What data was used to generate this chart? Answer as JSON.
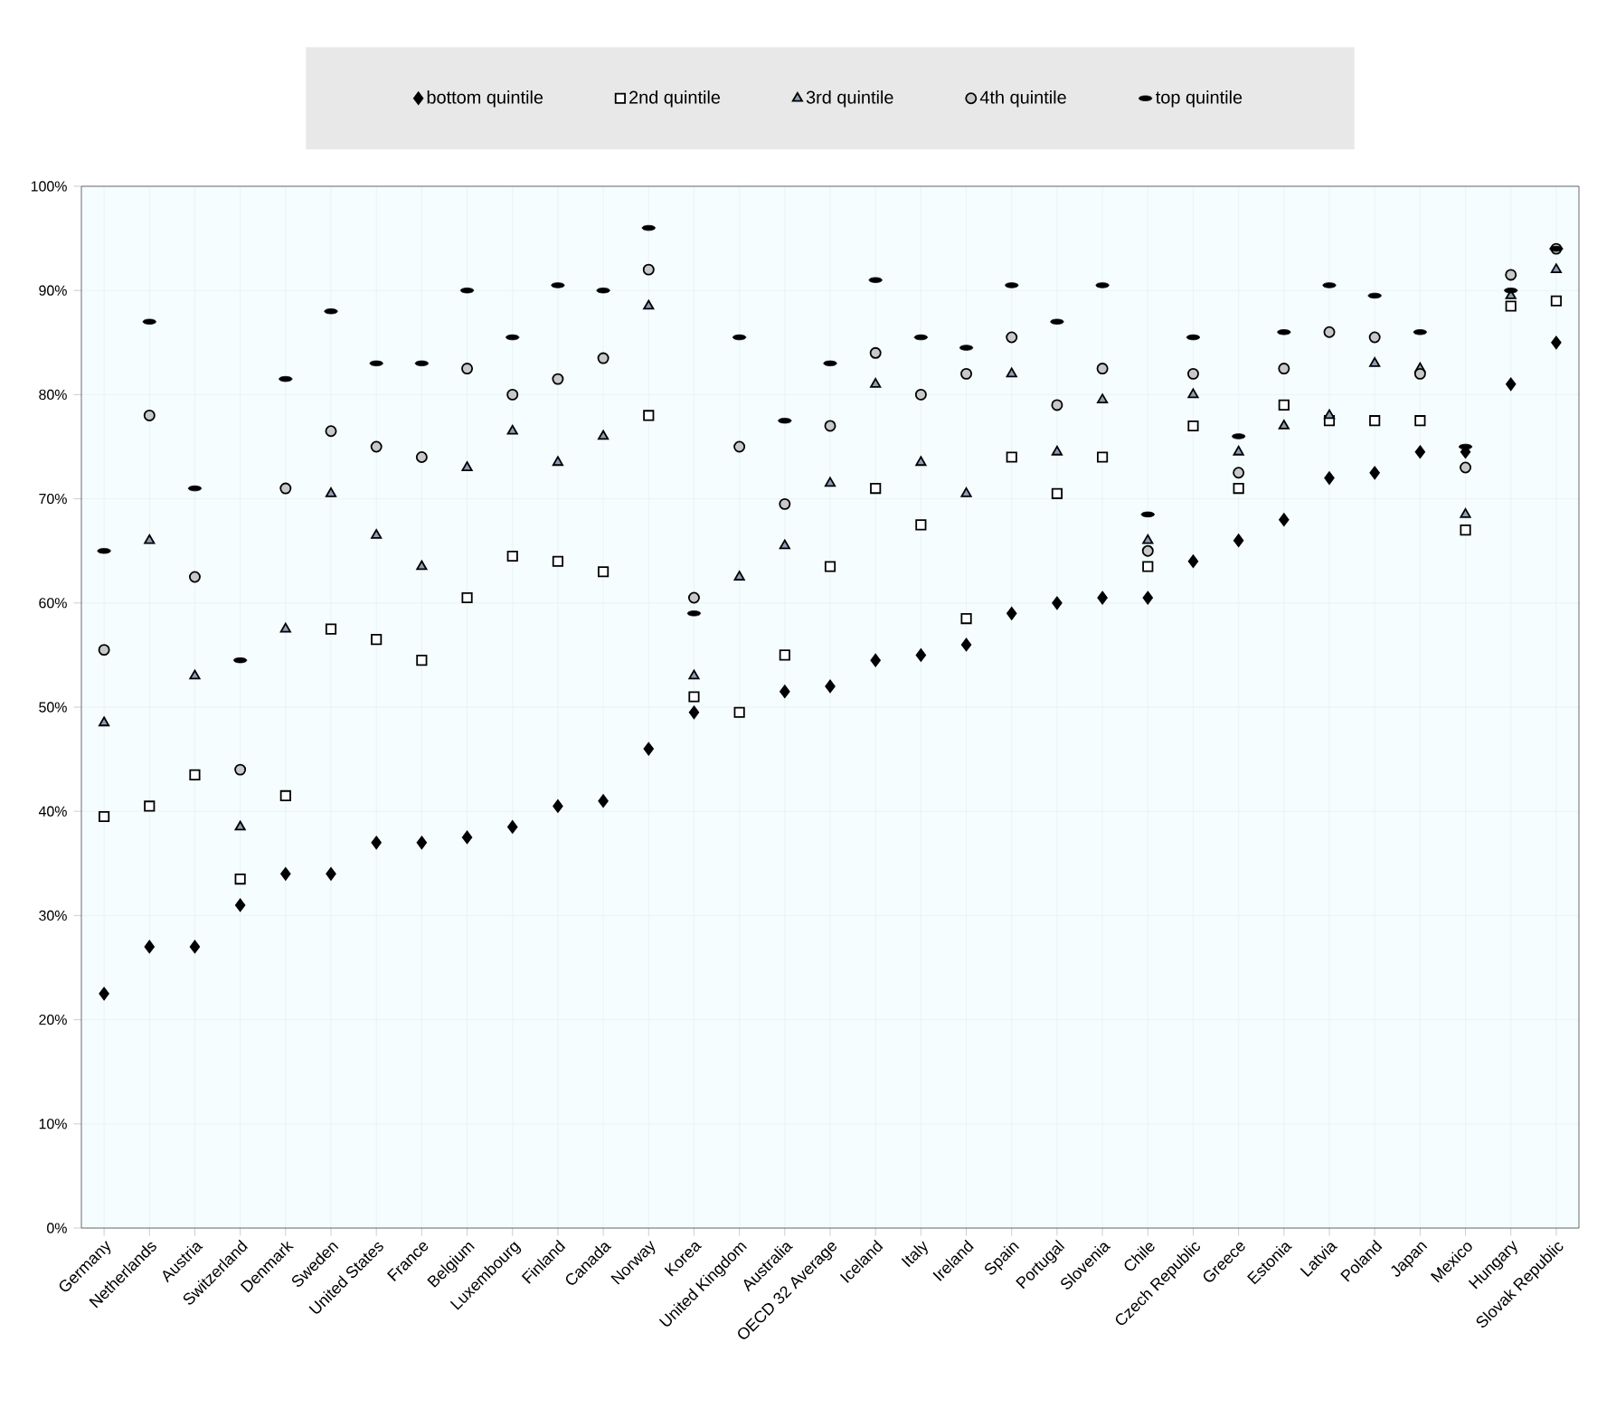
{
  "chart_data": {
    "type": "scatter",
    "categories": [
      "Germany",
      "Netherlands",
      "Austria",
      "Switzerland",
      "Denmark",
      "Sweden",
      "United States",
      "France",
      "Belgium",
      "Luxembourg",
      "Finland",
      "Canada",
      "Norway",
      "Korea",
      "United Kingdom",
      "Australia",
      "OECD 32 Average",
      "Iceland",
      "Italy",
      "Ireland",
      "Spain",
      "Portugal",
      "Slovenia",
      "Chile",
      "Czech Republic",
      "Greece",
      "Estonia",
      "Latvia",
      "Poland",
      "Japan",
      "Mexico",
      "Hungary",
      "Slovak Republic"
    ],
    "series": [
      {
        "name": "bottom quintile",
        "color": "#000000",
        "marker": "diamond",
        "values": [
          22.5,
          27,
          27,
          31,
          34,
          34,
          37,
          37,
          37.5,
          38.5,
          40.5,
          41,
          46,
          49.5,
          null,
          51.5,
          52,
          54.5,
          55,
          56,
          59,
          60,
          60.5,
          60.5,
          64,
          66,
          68,
          72,
          72.5,
          74.5,
          74.5,
          81,
          85
        ]
      },
      {
        "name": "2nd quintile",
        "color": "#ffffff",
        "marker": "square",
        "values": [
          39.5,
          40.5,
          43.5,
          33.5,
          41.5,
          57.5,
          56.5,
          54.5,
          60.5,
          64.5,
          64,
          63,
          78,
          51,
          49.5,
          55,
          63.5,
          71,
          67.5,
          58.5,
          74,
          70.5,
          74,
          63.5,
          77,
          71,
          79,
          77.5,
          77.5,
          77.5,
          67,
          88.5,
          89
        ]
      },
      {
        "name": "3rd quintile",
        "color": "#8e9db3",
        "marker": "triangle",
        "values": [
          48.5,
          66,
          53,
          38.5,
          57.5,
          70.5,
          66.5,
          63.5,
          73,
          76.5,
          73.5,
          76,
          88.5,
          53,
          62.5,
          65.5,
          71.5,
          81,
          73.5,
          70.5,
          82,
          74.5,
          79.5,
          66,
          80,
          74.5,
          77,
          78,
          83,
          82.5,
          68.5,
          89.5,
          92
        ]
      },
      {
        "name": "4th quintile",
        "color": "#c8c8c8",
        "marker": "circle",
        "values": [
          55.5,
          78,
          62.5,
          44,
          71,
          76.5,
          75,
          74,
          82.5,
          80,
          81.5,
          83.5,
          92,
          60.5,
          75,
          69.5,
          77,
          84,
          80,
          82,
          85.5,
          79,
          82.5,
          65,
          82,
          72.5,
          82.5,
          86,
          85.5,
          82,
          73,
          91.5,
          94
        ]
      },
      {
        "name": "top quintile",
        "color": "#000000",
        "values": [
          65,
          87,
          71,
          54.5,
          81.5,
          88,
          83,
          83,
          90,
          85.5,
          90.5,
          90,
          96,
          59,
          85.5,
          77.5,
          83,
          91,
          85.5,
          84.5,
          90.5,
          87,
          90.5,
          68.5,
          85.5,
          76,
          86,
          90.5,
          89.5,
          86,
          75,
          90,
          94
        ]
      }
    ],
    "ylim": [
      0,
      100
    ],
    "yticks": [
      {
        "value": 0,
        "label": "0%"
      },
      {
        "value": 10,
        "label": "10%"
      },
      {
        "value": 20,
        "label": "20%"
      },
      {
        "value": 30,
        "label": "30%"
      },
      {
        "value": 40,
        "label": "40%"
      },
      {
        "value": 50,
        "label": "50%"
      },
      {
        "value": 60,
        "label": "60%"
      },
      {
        "value": 70,
        "label": "70%"
      },
      {
        "value": 80,
        "label": "80%"
      },
      {
        "value": 90,
        "label": "90%"
      },
      {
        "value": 100,
        "label": "100%"
      }
    ],
    "grid": true,
    "legend": "top"
  }
}
